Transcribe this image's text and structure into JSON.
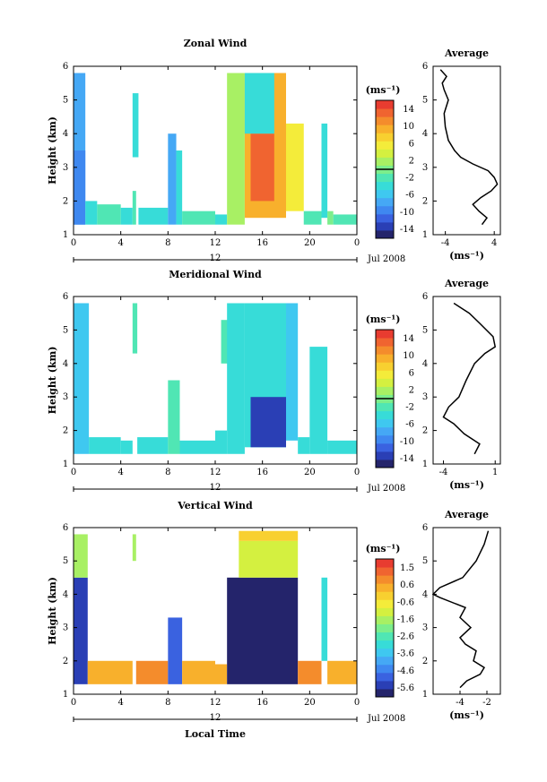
{
  "panels": [
    {
      "title": "Zonal Wind",
      "ylabel": "Height (km)",
      "yticks": [
        "1",
        "2",
        "3",
        "4",
        "5",
        "6"
      ],
      "xticks": [
        "0",
        "4",
        "8",
        "12",
        "16",
        "20",
        "0"
      ],
      "date_marker": "12",
      "date_label": "Jul 2008",
      "colorbar": {
        "unit": "(ms⁻¹)",
        "labels": [
          "14",
          "10",
          "6",
          "2",
          "-2",
          "-6",
          "-10",
          "-14"
        ],
        "range": [
          -14,
          14
        ],
        "colors": [
          "#24246b",
          "#2a3fb5",
          "#3a62e0",
          "#3f88f0",
          "#45a8f5",
          "#3fc8f0",
          "#37dcd8",
          "#50e6b4",
          "#7cee8c",
          "#a8f064",
          "#d4f040",
          "#f4ec3a",
          "#f8d030",
          "#f8b02c",
          "#f48c2c",
          "#f06430",
          "#e83c30"
        ],
        "marker_value": 0
      },
      "average": {
        "title": "Average",
        "xlabel": "(ms⁻¹)",
        "xticks": [
          "-4",
          "4"
        ],
        "xlim": [
          -6,
          5
        ],
        "ylim": [
          1,
          6
        ]
      }
    },
    {
      "title": "Meridional Wind",
      "ylabel": "Height (km)",
      "yticks": [
        "1",
        "2",
        "3",
        "4",
        "5",
        "6"
      ],
      "xticks": [
        "0",
        "4",
        "8",
        "12",
        "16",
        "20",
        "0"
      ],
      "date_marker": "12",
      "date_label": "Jul 2008",
      "colorbar": {
        "unit": "(ms⁻¹)",
        "labels": [
          "14",
          "10",
          "6",
          "2",
          "-2",
          "-6",
          "-10",
          "-14"
        ],
        "range": [
          -14,
          14
        ],
        "colors": [
          "#24246b",
          "#2a3fb5",
          "#3a62e0",
          "#3f88f0",
          "#45a8f5",
          "#3fc8f0",
          "#37dcd8",
          "#50e6b4",
          "#7cee8c",
          "#a8f064",
          "#d4f040",
          "#f4ec3a",
          "#f8d030",
          "#f8b02c",
          "#f48c2c",
          "#f06430",
          "#e83c30"
        ],
        "marker_value": 0
      },
      "average": {
        "title": "Average",
        "xlabel": "(ms⁻¹)",
        "xticks": [
          "-4",
          "1"
        ],
        "xlim": [
          -5,
          1.5
        ],
        "ylim": [
          1,
          6
        ]
      }
    },
    {
      "title": "Vertical Wind",
      "ylabel": "Height (km)",
      "yticks": [
        "1",
        "2",
        "3",
        "4",
        "5",
        "6"
      ],
      "xticks": [
        "0",
        "4",
        "8",
        "12",
        "16",
        "20",
        "0"
      ],
      "date_marker": "12",
      "date_label": "Jul 2008",
      "colorbar": {
        "unit": "(ms⁻¹)",
        "labels": [
          "1.5",
          "0.6",
          "-0.6",
          "-1.6",
          "-2.6",
          "-3.6",
          "-4.6",
          "-5.6"
        ],
        "range": [
          -6.1,
          2.0
        ],
        "colors": [
          "#24246b",
          "#2a3fb5",
          "#3a62e0",
          "#3f88f0",
          "#45a8f5",
          "#3fc8f0",
          "#37dcd8",
          "#50e6b4",
          "#7cee8c",
          "#a8f064",
          "#d4f040",
          "#f4ec3a",
          "#f8d030",
          "#f8b02c",
          "#f48c2c",
          "#f06430",
          "#e83c30"
        ],
        "marker_value": null
      },
      "average": {
        "title": "Average",
        "xlabel": "(ms⁻¹)",
        "xticks": [
          "-4",
          "-2"
        ],
        "xlim": [
          -6,
          -1
        ],
        "ylim": [
          1,
          6
        ]
      }
    }
  ],
  "xlabel": "Local Time",
  "chart_data": [
    {
      "type": "heatmap",
      "title": "Zonal Wind",
      "xlabel": "Local Time",
      "ylabel": "Height (km)",
      "xlim": [
        0,
        24
      ],
      "ylim": [
        1,
        6
      ],
      "zrange": [
        -14,
        14
      ],
      "cells": [
        [
          0,
          1,
          1.3,
          5.8,
          -6
        ],
        [
          0,
          1,
          1.3,
          3.5,
          -9
        ],
        [
          1,
          2,
          1.3,
          2.0,
          -3
        ],
        [
          2,
          4,
          1.3,
          1.9,
          -2
        ],
        [
          4,
          5,
          1.3,
          1.8,
          -3
        ],
        [
          5,
          5.3,
          1.3,
          2.3,
          -2
        ],
        [
          5,
          5.5,
          3.3,
          5.2,
          -4
        ],
        [
          5.5,
          8,
          1.3,
          1.8,
          -3
        ],
        [
          8,
          8.7,
          1.3,
          4.0,
          -6
        ],
        [
          8.7,
          9.2,
          1.3,
          3.5,
          -4
        ],
        [
          9.2,
          12,
          1.3,
          1.7,
          -2
        ],
        [
          12,
          13,
          1.3,
          1.6,
          -4
        ],
        [
          13,
          14.5,
          1.3,
          5.8,
          2
        ],
        [
          14.5,
          18,
          1.5,
          5.8,
          8
        ],
        [
          15,
          17,
          2.0,
          4.0,
          12
        ],
        [
          14.5,
          17,
          4.0,
          5.8,
          -4
        ],
        [
          18,
          19.5,
          1.7,
          4.3,
          5
        ],
        [
          19.5,
          21,
          1.3,
          1.7,
          -2
        ],
        [
          21,
          21.5,
          1.5,
          4.3,
          -3
        ],
        [
          21.5,
          22,
          1.3,
          1.7,
          0
        ],
        [
          22,
          24,
          1.3,
          1.6,
          -1
        ]
      ],
      "average_profile": {
        "x": [
          2.0,
          2.8,
          1.5,
          0.5,
          1.8,
          3.5,
          4.5,
          4.0,
          3.0,
          0.5,
          -1.5,
          -2.5,
          -3.5,
          -4.0,
          -4.2,
          -3.5,
          -4.2,
          -4.5,
          -3.8,
          -4.8
        ],
        "y": [
          1.3,
          1.5,
          1.7,
          1.9,
          2.1,
          2.3,
          2.5,
          2.7,
          2.9,
          3.1,
          3.3,
          3.5,
          3.8,
          4.2,
          4.6,
          5.0,
          5.3,
          5.5,
          5.7,
          5.9
        ]
      }
    },
    {
      "type": "heatmap",
      "title": "Meridional Wind",
      "xlabel": "Local Time",
      "ylabel": "Height (km)",
      "xlim": [
        0,
        24
      ],
      "ylim": [
        1,
        6
      ],
      "zrange": [
        -14,
        14
      ],
      "cells": [
        [
          0,
          1.3,
          1.3,
          5.8,
          -5
        ],
        [
          1.3,
          4,
          1.3,
          1.8,
          -4
        ],
        [
          4,
          5,
          1.3,
          1.7,
          -3
        ],
        [
          5,
          5.4,
          4.3,
          5.8,
          -2
        ],
        [
          5.4,
          8,
          1.3,
          1.8,
          -4
        ],
        [
          8,
          9,
          1.3,
          3.5,
          -2
        ],
        [
          9,
          12,
          1.3,
          1.7,
          -4
        ],
        [
          12,
          13,
          1.3,
          2.0,
          -3
        ],
        [
          12.5,
          13.5,
          4.0,
          5.3,
          -2
        ],
        [
          13,
          14.5,
          1.3,
          5.8,
          -3
        ],
        [
          14.5,
          18,
          1.5,
          5.8,
          -4
        ],
        [
          15,
          18,
          1.5,
          3.0,
          -11
        ],
        [
          18,
          19,
          1.7,
          5.8,
          -5
        ],
        [
          19,
          20,
          1.3,
          1.8,
          -4
        ],
        [
          20,
          21.5,
          1.3,
          4.5,
          -3
        ],
        [
          21.5,
          24,
          1.3,
          1.7,
          -4
        ]
      ],
      "average_profile": {
        "x": [
          -1.0,
          -0.5,
          -2.0,
          -3.0,
          -4.0,
          -3.5,
          -2.5,
          -1.8,
          -1.0,
          0.0,
          1.0,
          0.8,
          -0.5,
          -1.5,
          -3.0
        ],
        "y": [
          1.3,
          1.6,
          1.9,
          2.2,
          2.4,
          2.7,
          3.0,
          3.5,
          4.0,
          4.3,
          4.5,
          4.8,
          5.2,
          5.5,
          5.8
        ]
      }
    },
    {
      "type": "heatmap",
      "title": "Vertical Wind",
      "xlabel": "Local Time",
      "ylabel": "Height (km)",
      "xlim": [
        0,
        24
      ],
      "ylim": [
        1,
        6
      ],
      "zrange": [
        -6.1,
        2.0
      ],
      "cells": [
        [
          0,
          1.2,
          1.3,
          4.5,
          -5.2
        ],
        [
          0,
          1.2,
          4.5,
          5.8,
          -1.4
        ],
        [
          1.2,
          5,
          1.3,
          2.0,
          0.4
        ],
        [
          5,
          5.3,
          5.0,
          5.8,
          -1.8
        ],
        [
          5.3,
          8,
          1.3,
          2.0,
          0.6
        ],
        [
          8,
          9.2,
          1.3,
          3.3,
          -5.0
        ],
        [
          9.2,
          12,
          1.3,
          2.0,
          0.5
        ],
        [
          12,
          13,
          1.3,
          1.9,
          0.2
        ],
        [
          13,
          19,
          1.3,
          4.5,
          -5.8
        ],
        [
          14,
          19,
          4.5,
          5.6,
          -0.9
        ],
        [
          14,
          19,
          5.6,
          5.9,
          -0.2
        ],
        [
          19,
          21,
          1.3,
          2.0,
          0.6
        ],
        [
          21,
          21.5,
          2.0,
          4.5,
          -3.0
        ],
        [
          21.5,
          24,
          1.3,
          2.0,
          0.5
        ]
      ],
      "average_profile": {
        "x": [
          -4.0,
          -3.5,
          -2.5,
          -2.2,
          -3.0,
          -2.8,
          -3.6,
          -4.0,
          -3.2,
          -4.0,
          -3.6,
          -5.5,
          -6.0,
          -5.5,
          -3.8,
          -2.8,
          -2.2,
          -1.9
        ],
        "y": [
          1.2,
          1.4,
          1.6,
          1.8,
          2.0,
          2.3,
          2.5,
          2.7,
          3.0,
          3.3,
          3.6,
          3.9,
          4.0,
          4.2,
          4.5,
          5.0,
          5.5,
          5.9
        ]
      }
    }
  ]
}
